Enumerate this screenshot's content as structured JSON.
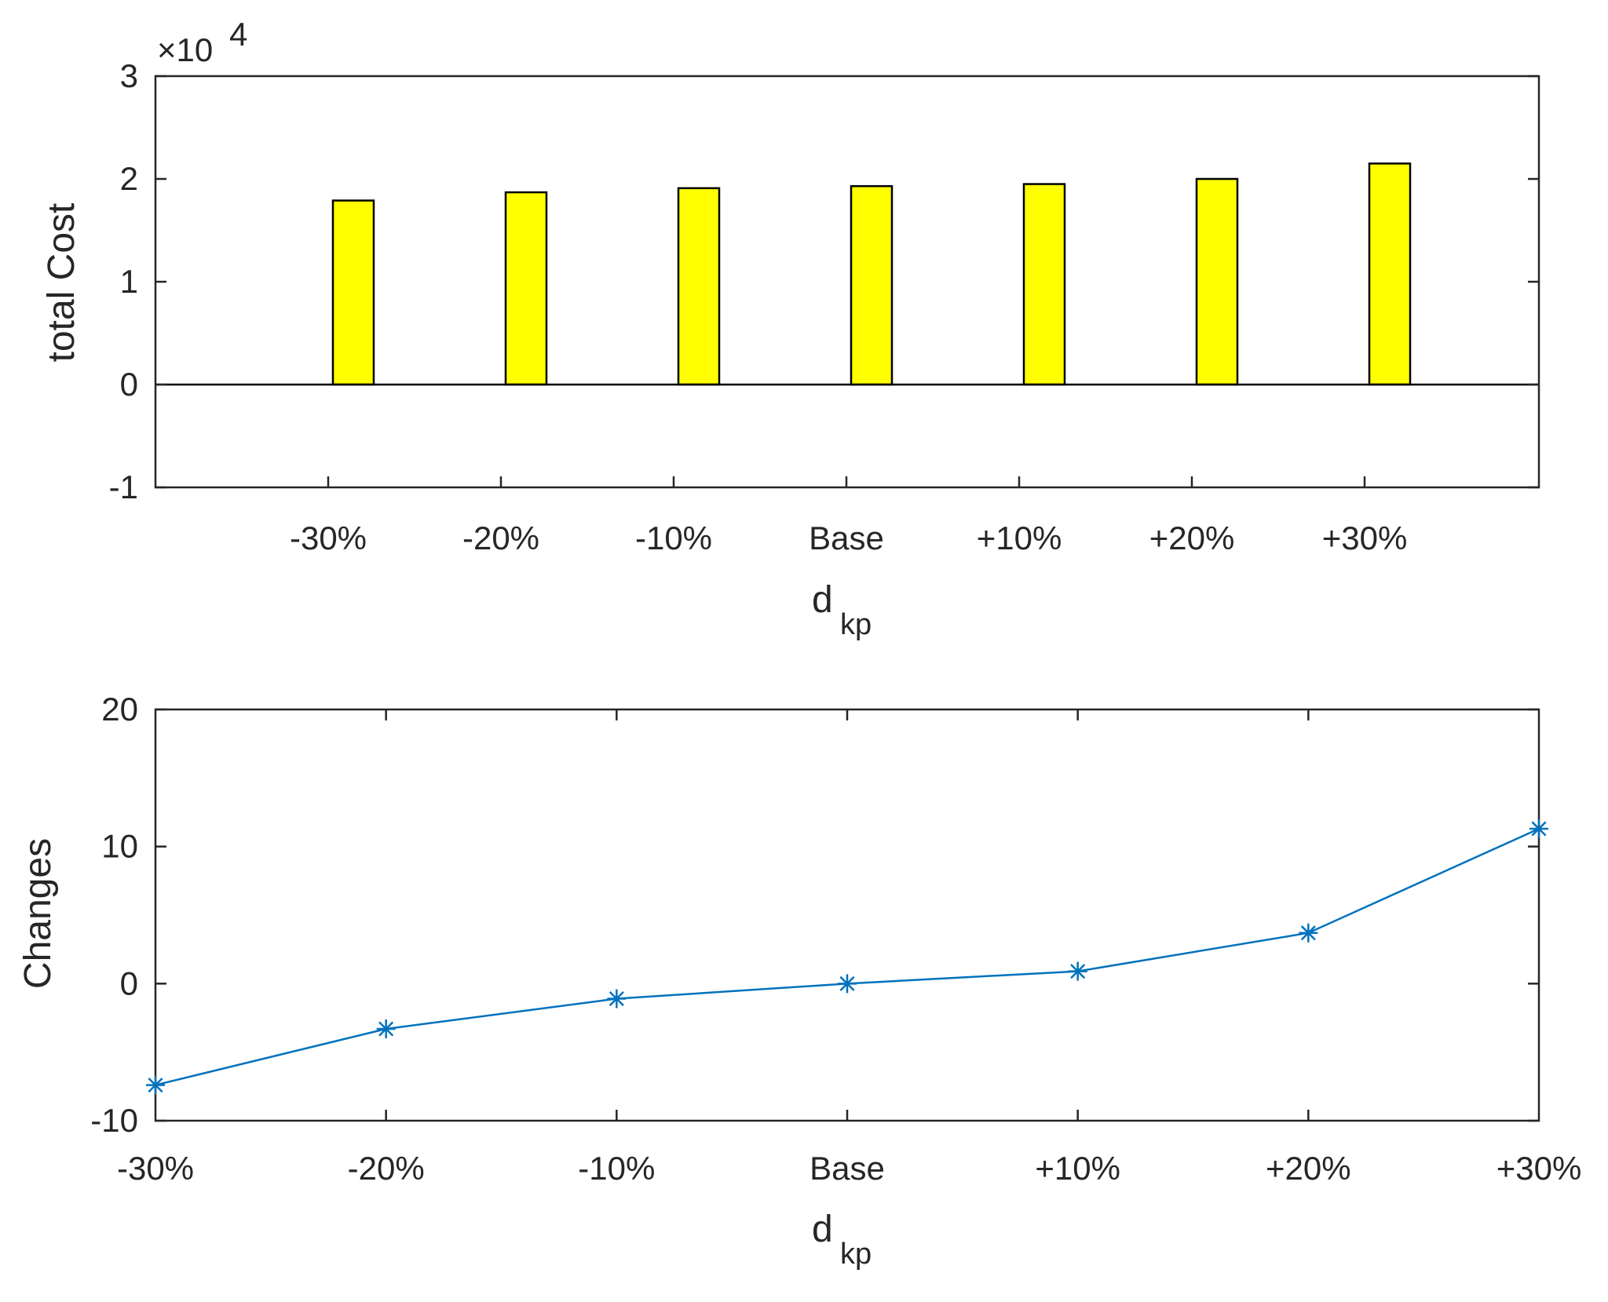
{
  "chart_data": [
    {
      "type": "bar",
      "categories": [
        "-30%",
        "-20%",
        "-10%",
        "Base",
        "+10%",
        "+20%",
        "+30%"
      ],
      "values": [
        17900,
        18700,
        19100,
        19300,
        19500,
        20000,
        21500
      ],
      "ylabel": "total Cost",
      "xlabel_main": "d",
      "xlabel_sub": "kp",
      "ylim": [
        -1,
        3
      ],
      "yticks": [
        "-1",
        "0",
        "1",
        "2",
        "3"
      ],
      "exponent_base": "×10",
      "exponent_power": "4",
      "bar_color": "#ffff00",
      "grid": false
    },
    {
      "type": "line",
      "categories": [
        "-30%",
        "-20%",
        "-10%",
        "Base",
        "+10%",
        "+20%",
        "+30%"
      ],
      "values": [
        -7.4,
        -3.3,
        -1.1,
        0,
        0.9,
        3.7,
        11.3
      ],
      "ylabel": "Changes",
      "xlabel_main": "d",
      "xlabel_sub": "kp",
      "ylim": [
        -10,
        20
      ],
      "yticks": [
        "-10",
        "0",
        "10",
        "20"
      ],
      "line_color": "#0072bd",
      "marker": "asterisk",
      "grid": false
    }
  ]
}
